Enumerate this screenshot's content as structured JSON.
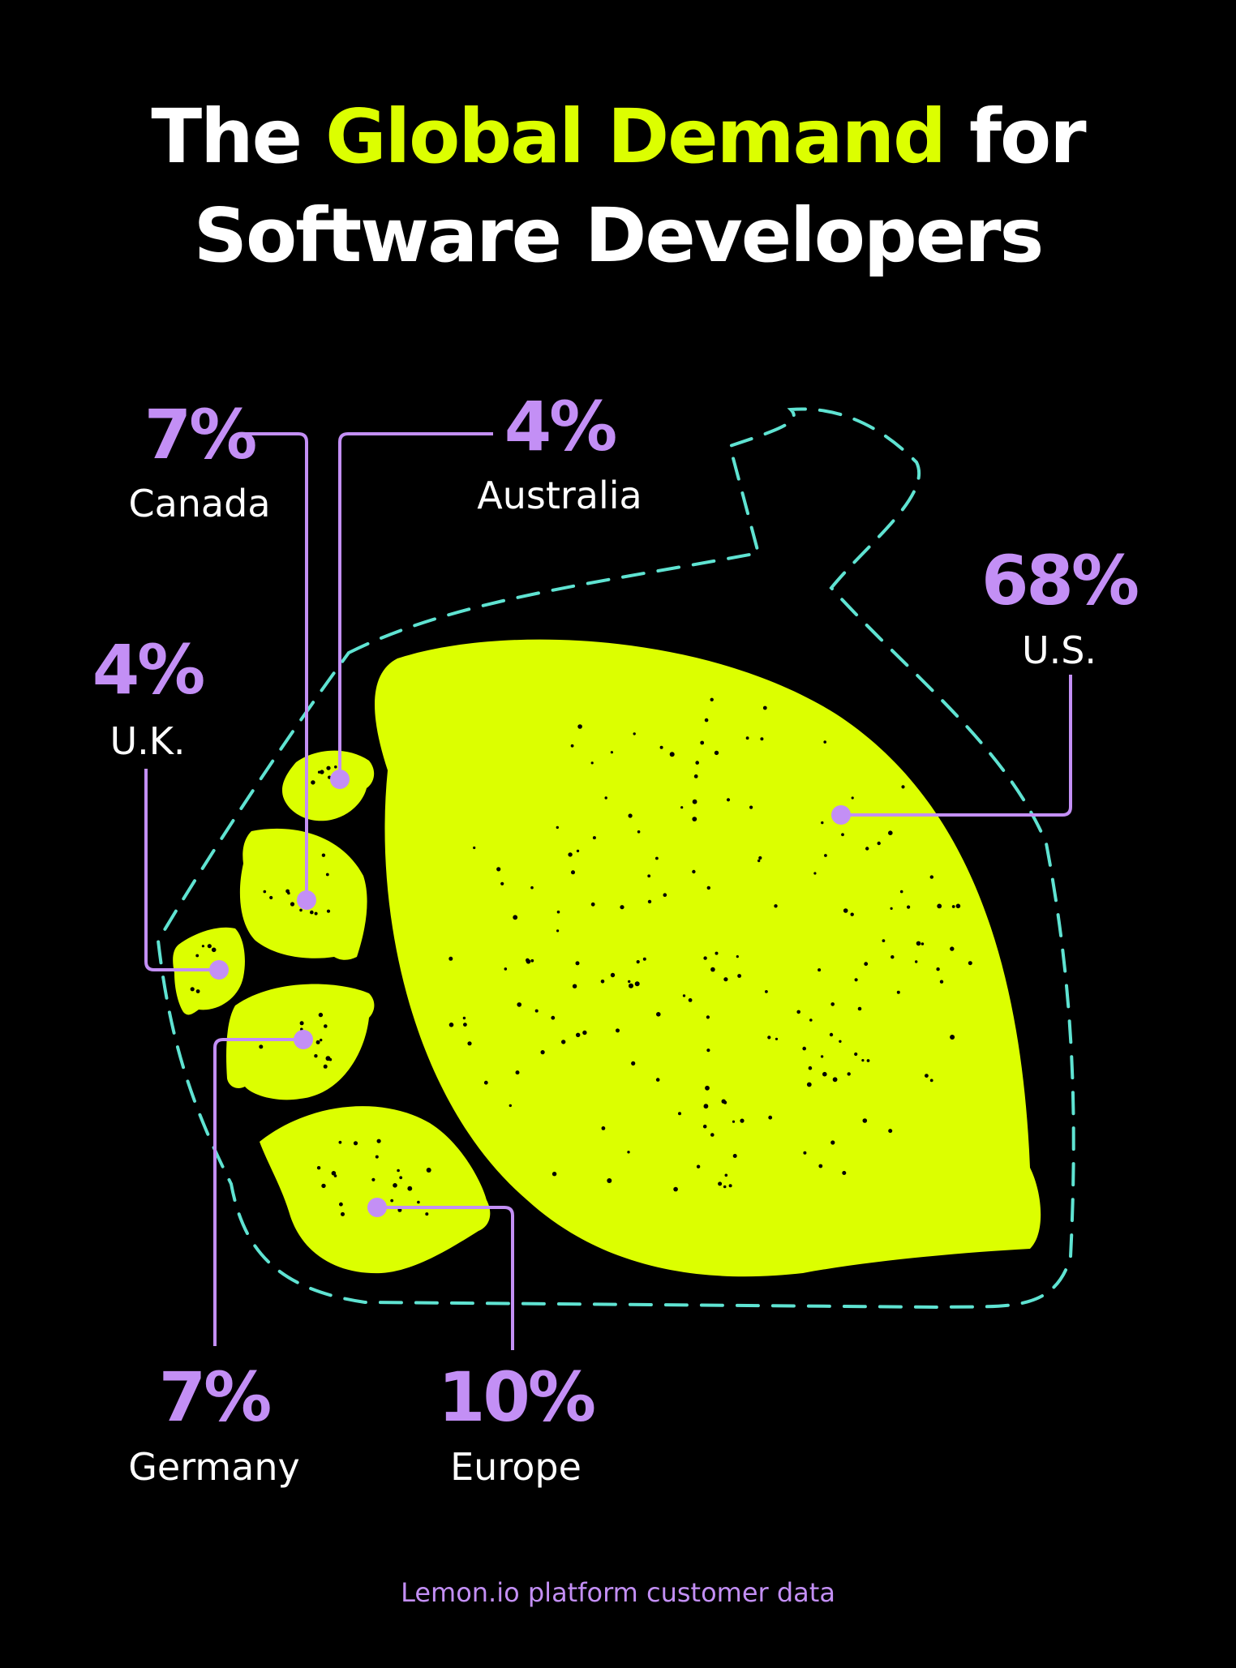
{
  "title": {
    "part1": "The ",
    "highlight": "Global Demand",
    "part2": " for",
    "line2": "Software Developers"
  },
  "source": "Lemon.io platform customer data",
  "colors": {
    "background": "#000000",
    "lemon": "#DCFF00",
    "accent": "#C38FF5",
    "outline": "#5FE3D2",
    "text": "#FFFFFF",
    "seed": "#000000"
  },
  "chart_data": {
    "type": "pie",
    "unit": "%",
    "categories": [
      "U.S.",
      "Europe",
      "Canada",
      "Germany",
      "U.K.",
      "Australia"
    ],
    "values": [
      68,
      10,
      7,
      7,
      4,
      4
    ],
    "labels": [
      "68%",
      "10%",
      "7%",
      "7%",
      "4%",
      "4%"
    ]
  }
}
